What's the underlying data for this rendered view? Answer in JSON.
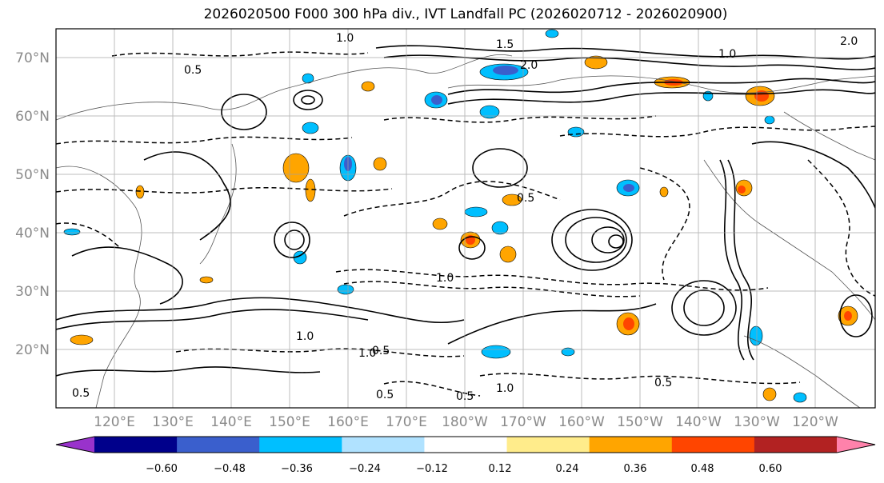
{
  "title": "2026020500 F000 300 hPa div., IVT Landfall PC (2026020712 - 2026020900)",
  "lat_ticks": [
    "70°N",
    "60°N",
    "50°N",
    "40°N",
    "30°N",
    "20°N"
  ],
  "lon_ticks": [
    "120°E",
    "130°E",
    "140°E",
    "150°E",
    "160°E",
    "170°E",
    "180°W",
    "170°W",
    "160°W",
    "150°W",
    "140°W",
    "130°W",
    "120°W"
  ],
  "colorbar": {
    "ticks": [
      "−0.60",
      "−0.48",
      "−0.36",
      "−0.24",
      "−0.12",
      "0.12",
      "0.24",
      "0.36",
      "0.48",
      "0.60"
    ],
    "colors": [
      "#9932cc",
      "#00008b",
      "#3a5fcd",
      "#00bfff",
      "#b0e2ff",
      "#ffffff",
      "#ffec8b",
      "#ffa500",
      "#ff4500",
      "#b22222",
      "#ff82ab"
    ]
  },
  "contour_labels": [
    "1.0",
    "0.5",
    "2.0",
    "1.5",
    "0.5",
    "1.0",
    "0.5",
    "1.0",
    "1.0",
    "0.5",
    "1.0",
    "0.5",
    "2.0",
    "1.0",
    "0.5",
    "0.5"
  ],
  "map_extent": {
    "lon_min": 110,
    "lon_max": 250,
    "lat_min": 10,
    "lat_max": 75
  }
}
